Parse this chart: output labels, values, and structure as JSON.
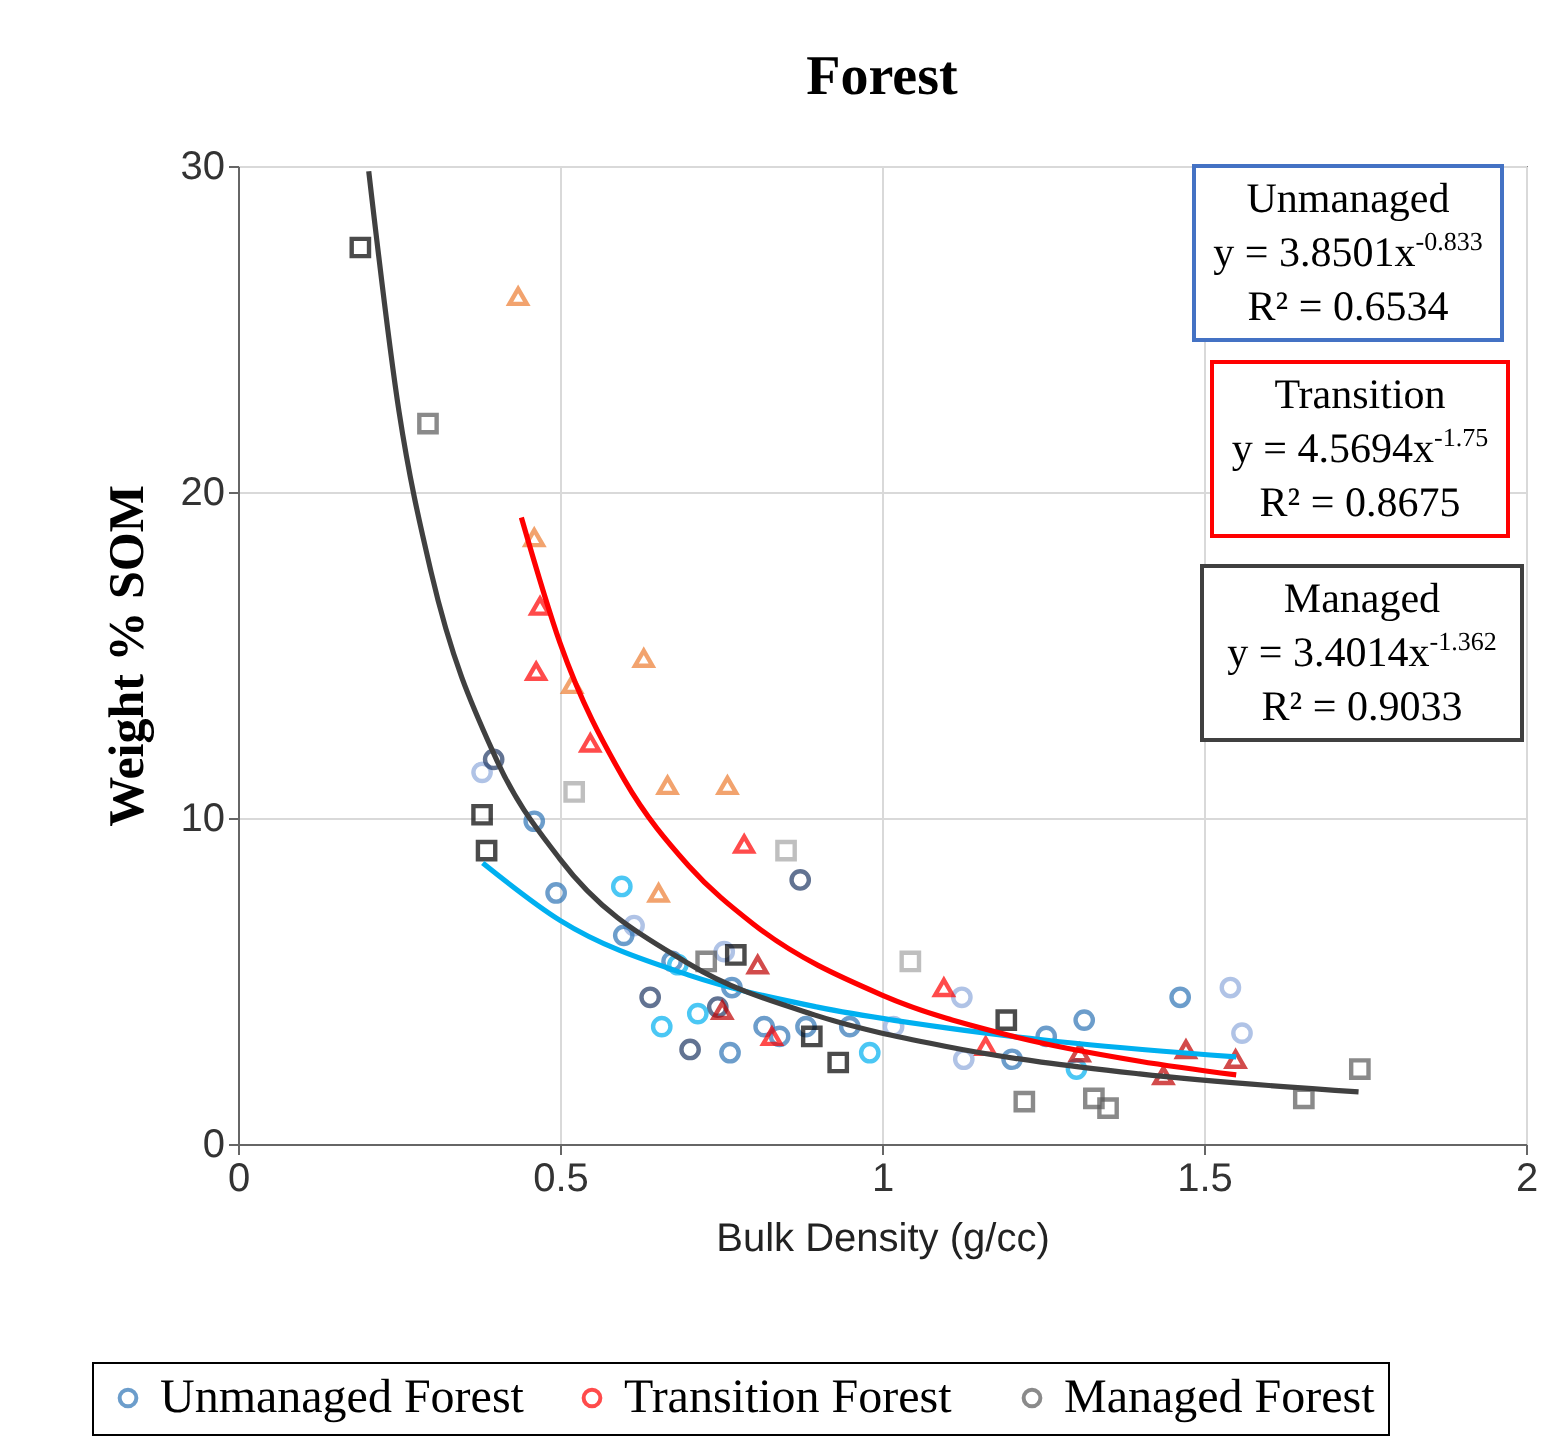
{
  "chart_data": {
    "type": "scatter",
    "title": "Forest",
    "xlabel": "Bulk Density (g/cc)",
    "ylabel": "Weight % SOM",
    "xlim": [
      0,
      2
    ],
    "xticks": [
      0,
      0.5,
      1,
      1.5,
      2
    ],
    "ylim": [
      0,
      30
    ],
    "yticks": [
      0,
      10,
      20,
      30
    ],
    "grid": true,
    "legend": "bottom",
    "annotations": [
      "Unmanaged\ny = 3.8501x$^{-0.833}$\nR² = 0.6534",
      "Transition\ny = 4.5694x$^{-1.75}$\nR² = 0.8675",
      "Managed\ny = 3.4014x$^{-1.362}$\nR² = 0.9033"
    ],
    "series": [
      {
        "name": "Unmanaged Forest",
        "marker": "circle",
        "color": "#2e75b6",
        "x": [
          0.379,
          0.397,
          0.46,
          0.494,
          0.596,
          0.615,
          0.599,
          0.674,
          0.683,
          0.755,
          0.767,
          0.64,
          0.745,
          0.714,
          0.658,
          0.702,
          0.764,
          0.817,
          0.841,
          0.882,
          0.873,
          0.95,
          0.981,
          1.018,
          1.124,
          1.127,
          1.202,
          1.255,
          1.314,
          1.302,
          1.463,
          1.541,
          1.559
        ],
        "values": [
          11.4,
          11.8,
          9.9,
          7.7,
          7.9,
          6.7,
          6.4,
          5.6,
          5.5,
          5.9,
          4.8,
          4.5,
          4.2,
          4.0,
          3.6,
          2.9,
          2.8,
          3.6,
          3.3,
          3.6,
          8.1,
          3.6,
          2.8,
          3.6,
          4.5,
          2.6,
          2.6,
          3.3,
          3.8,
          2.3,
          4.5,
          4.8,
          3.4
        ],
        "colors": [
          "#8faadc",
          "#203864",
          "#2e75b6",
          "#2e75b6",
          "#00b0f0",
          "#8faadc",
          "#2e75b6",
          "#2e75b6",
          "#00b0f0",
          "#8faadc",
          "#2e75b6",
          "#203864",
          "#203864",
          "#00b0f0",
          "#00b0f0",
          "#203864",
          "#2e75b6",
          "#2e75b6",
          "#2e75b6",
          "#2e75b6",
          "#203864",
          "#2e75b6",
          "#00b0f0",
          "#8faadc",
          "#8faadc",
          "#8faadc",
          "#2e75b6",
          "#2e75b6",
          "#2e75b6",
          "#00b0f0",
          "#2e75b6",
          "#8faadc",
          "#8faadc"
        ]
      },
      {
        "name": "Transition  Forest",
        "marker": "triangle",
        "color": "#ff0000",
        "x": [
          0.435,
          0.46,
          0.469,
          0.463,
          0.63,
          0.519,
          0.547,
          0.667,
          0.76,
          0.786,
          0.653,
          0.807,
          0.752,
          0.829,
          1.096,
          1.161,
          1.307,
          1.437,
          1.472,
          1.549
        ],
        "values": [
          26.0,
          18.6,
          16.5,
          14.5,
          14.9,
          14.1,
          12.3,
          11.0,
          11.0,
          9.2,
          7.7,
          5.5,
          4.1,
          3.3,
          4.8,
          3.0,
          2.8,
          2.1,
          2.9,
          2.6
        ],
        "colors": [
          "#ed7d31",
          "#ed7d31",
          "#ff0000",
          "#ff0000",
          "#ed7d31",
          "#ed7d31",
          "#ff0000",
          "#ed7d31",
          "#ed7d31",
          "#ff0000",
          "#ed7d31",
          "#c00000",
          "#c00000",
          "#ff0000",
          "#ff0000",
          "#ff0000",
          "#c00000",
          "#c00000",
          "#c00000",
          "#c00000"
        ]
      },
      {
        "name": "Managed Forest",
        "marker": "square",
        "color": "#595959",
        "x": [
          0.19,
          0.295,
          0.379,
          0.386,
          0.522,
          0.851,
          0.727,
          0.773,
          0.891,
          0.932,
          1.044,
          1.193,
          1.221,
          1.329,
          1.351,
          1.655,
          1.742
        ],
        "values": [
          27.5,
          22.1,
          10.1,
          9.0,
          10.8,
          9.0,
          5.6,
          5.8,
          3.3,
          2.5,
          5.6,
          3.8,
          1.3,
          1.4,
          1.1,
          1.4,
          2.3
        ],
        "colors": [
          "#000000",
          "#595959",
          "#000000",
          "#000000",
          "#a5a5a5",
          "#a5a5a5",
          "#595959",
          "#000000",
          "#000000",
          "#000000",
          "#a5a5a5",
          "#000000",
          "#595959",
          "#595959",
          "#595959",
          "#595959",
          "#595959"
        ]
      },
      {
        "type": "line",
        "color": "#00b0f0",
        "x": [
          0.38,
          0.5,
          0.7,
          0.9,
          1.1,
          1.3,
          1.55
        ],
        "values": [
          8.62,
          6.86,
          5.18,
          4.2,
          3.56,
          3.09,
          2.67
        ]
      },
      {
        "type": "line",
        "color": "#ff0000",
        "x": [
          0.44,
          0.5,
          0.6,
          0.7,
          0.8,
          1.0,
          1.2,
          1.4,
          1.55
        ],
        "values": [
          19.22,
          15.37,
          11.17,
          8.53,
          6.75,
          4.57,
          3.32,
          2.54,
          2.12
        ]
      },
      {
        "type": "line",
        "color": "#404040",
        "x": [
          0.203,
          0.25,
          0.3,
          0.4,
          0.5,
          0.7,
          0.9,
          1.1,
          1.4,
          1.74
        ],
        "values": [
          29.84,
          22.47,
          17.53,
          11.85,
          8.74,
          5.53,
          3.93,
          2.99,
          2.15,
          1.6
        ]
      }
    ]
  }
}
